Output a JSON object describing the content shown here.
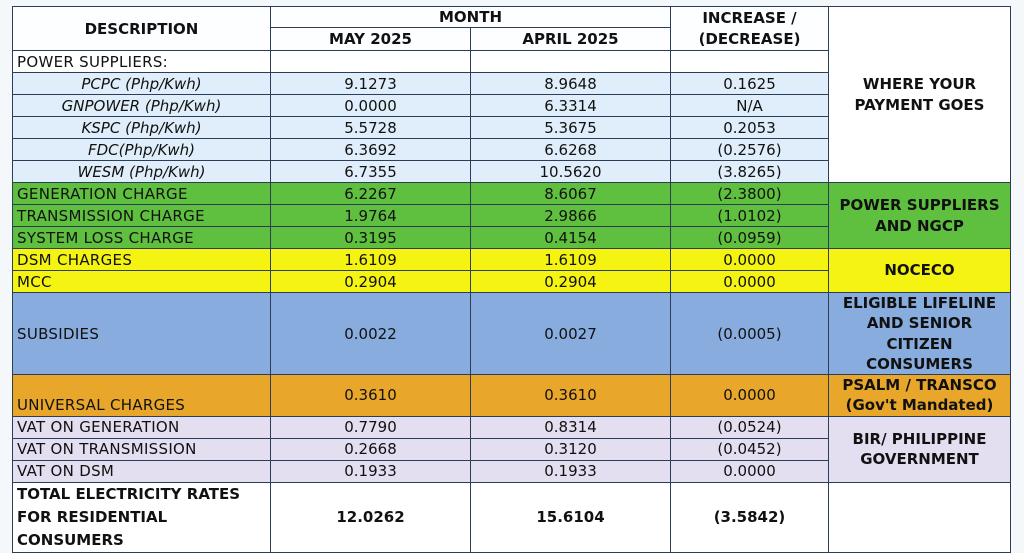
{
  "header": {
    "description": "DESCRIPTION",
    "month": "MONTH",
    "may": "MAY 2025",
    "april": "APRIL 2025",
    "increase_line1": "INCREASE /",
    "increase_line2": "(DECREASE)"
  },
  "power_suppliers_label": "POWER SUPPLIERS:",
  "suppliers": [
    {
      "name": "PCPC (Php/Kwh)",
      "may": "9.1273",
      "april": "8.9648",
      "change": "0.1625"
    },
    {
      "name": "GNPOWER (Php/Kwh)",
      "may": "0.0000",
      "april": "6.3314",
      "change": "N/A"
    },
    {
      "name": "KSPC (Php/Kwh)",
      "may": "5.5728",
      "april": "5.3675",
      "change": "0.2053"
    },
    {
      "name": "FDC(Php/Kwh)",
      "may": "6.3692",
      "april": "6.6268",
      "change": "(0.2576)"
    },
    {
      "name": "WESM (Php/Kwh)",
      "may": "6.7355",
      "april": "10.5620",
      "change": "(3.8265)"
    }
  ],
  "charges": [
    {
      "name": "GENERATION CHARGE",
      "may": "6.2267",
      "april": "8.6067",
      "change": "(2.3800)"
    },
    {
      "name": "TRANSMISSION CHARGE",
      "may": "1.9764",
      "april": "2.9866",
      "change": "(1.0102)"
    },
    {
      "name": "SYSTEM LOSS CHARGE",
      "may": "0.3195",
      "april": "0.4154",
      "change": "(0.0959)"
    },
    {
      "name": "DSM CHARGES",
      "may": "1.6109",
      "april": "1.6109",
      "change": "0.0000"
    },
    {
      "name": "MCC",
      "may": "0.2904",
      "april": "0.2904",
      "change": "0.0000"
    },
    {
      "name": "SUBSIDIES",
      "may": "0.0022",
      "april": "0.0027",
      "change": "(0.0005)"
    },
    {
      "name": "UNIVERSAL CHARGES",
      "may": "0.3610",
      "april": "0.3610",
      "change": "0.0000"
    },
    {
      "name": "VAT ON GENERATION",
      "may": "0.7790",
      "april": "0.8314",
      "change": "(0.0524)"
    },
    {
      "name": "VAT ON TRANSMISSION",
      "may": "0.2668",
      "april": "0.3120",
      "change": "(0.0452)"
    },
    {
      "name": "VAT ON DSM",
      "may": "0.1933",
      "april": "0.1933",
      "change": "0.0000"
    }
  ],
  "total": {
    "line1": "TOTAL ELECTRICITY RATES",
    "line2": "FOR RESIDENTIAL",
    "line3": "CONSUMERS",
    "may": "12.0262",
    "april": "15.6104",
    "change": "(3.5842)"
  },
  "where": {
    "payment": "WHERE YOUR PAYMENT GOES",
    "power_ngcp": "POWER SUPPLIERS AND NGCP",
    "noceco": "NOCECO",
    "lifeline": "ELIGIBLE LIFELINE AND SENIOR CITIZEN CONSUMERS",
    "psalm_line1": "PSALM / TRANSCO",
    "psalm_line2": "(Gov't Mandated)",
    "bir": "BIR/ PHILIPPINE GOVERNMENT"
  },
  "colors": {
    "green": "#5fbf3f",
    "yellow": "#f4f312",
    "blue": "#87acdd",
    "orange": "#e8a62a",
    "lavender": "#e3def0",
    "light_blue": "#dfeefa",
    "negative_text": "#c8202c"
  }
}
